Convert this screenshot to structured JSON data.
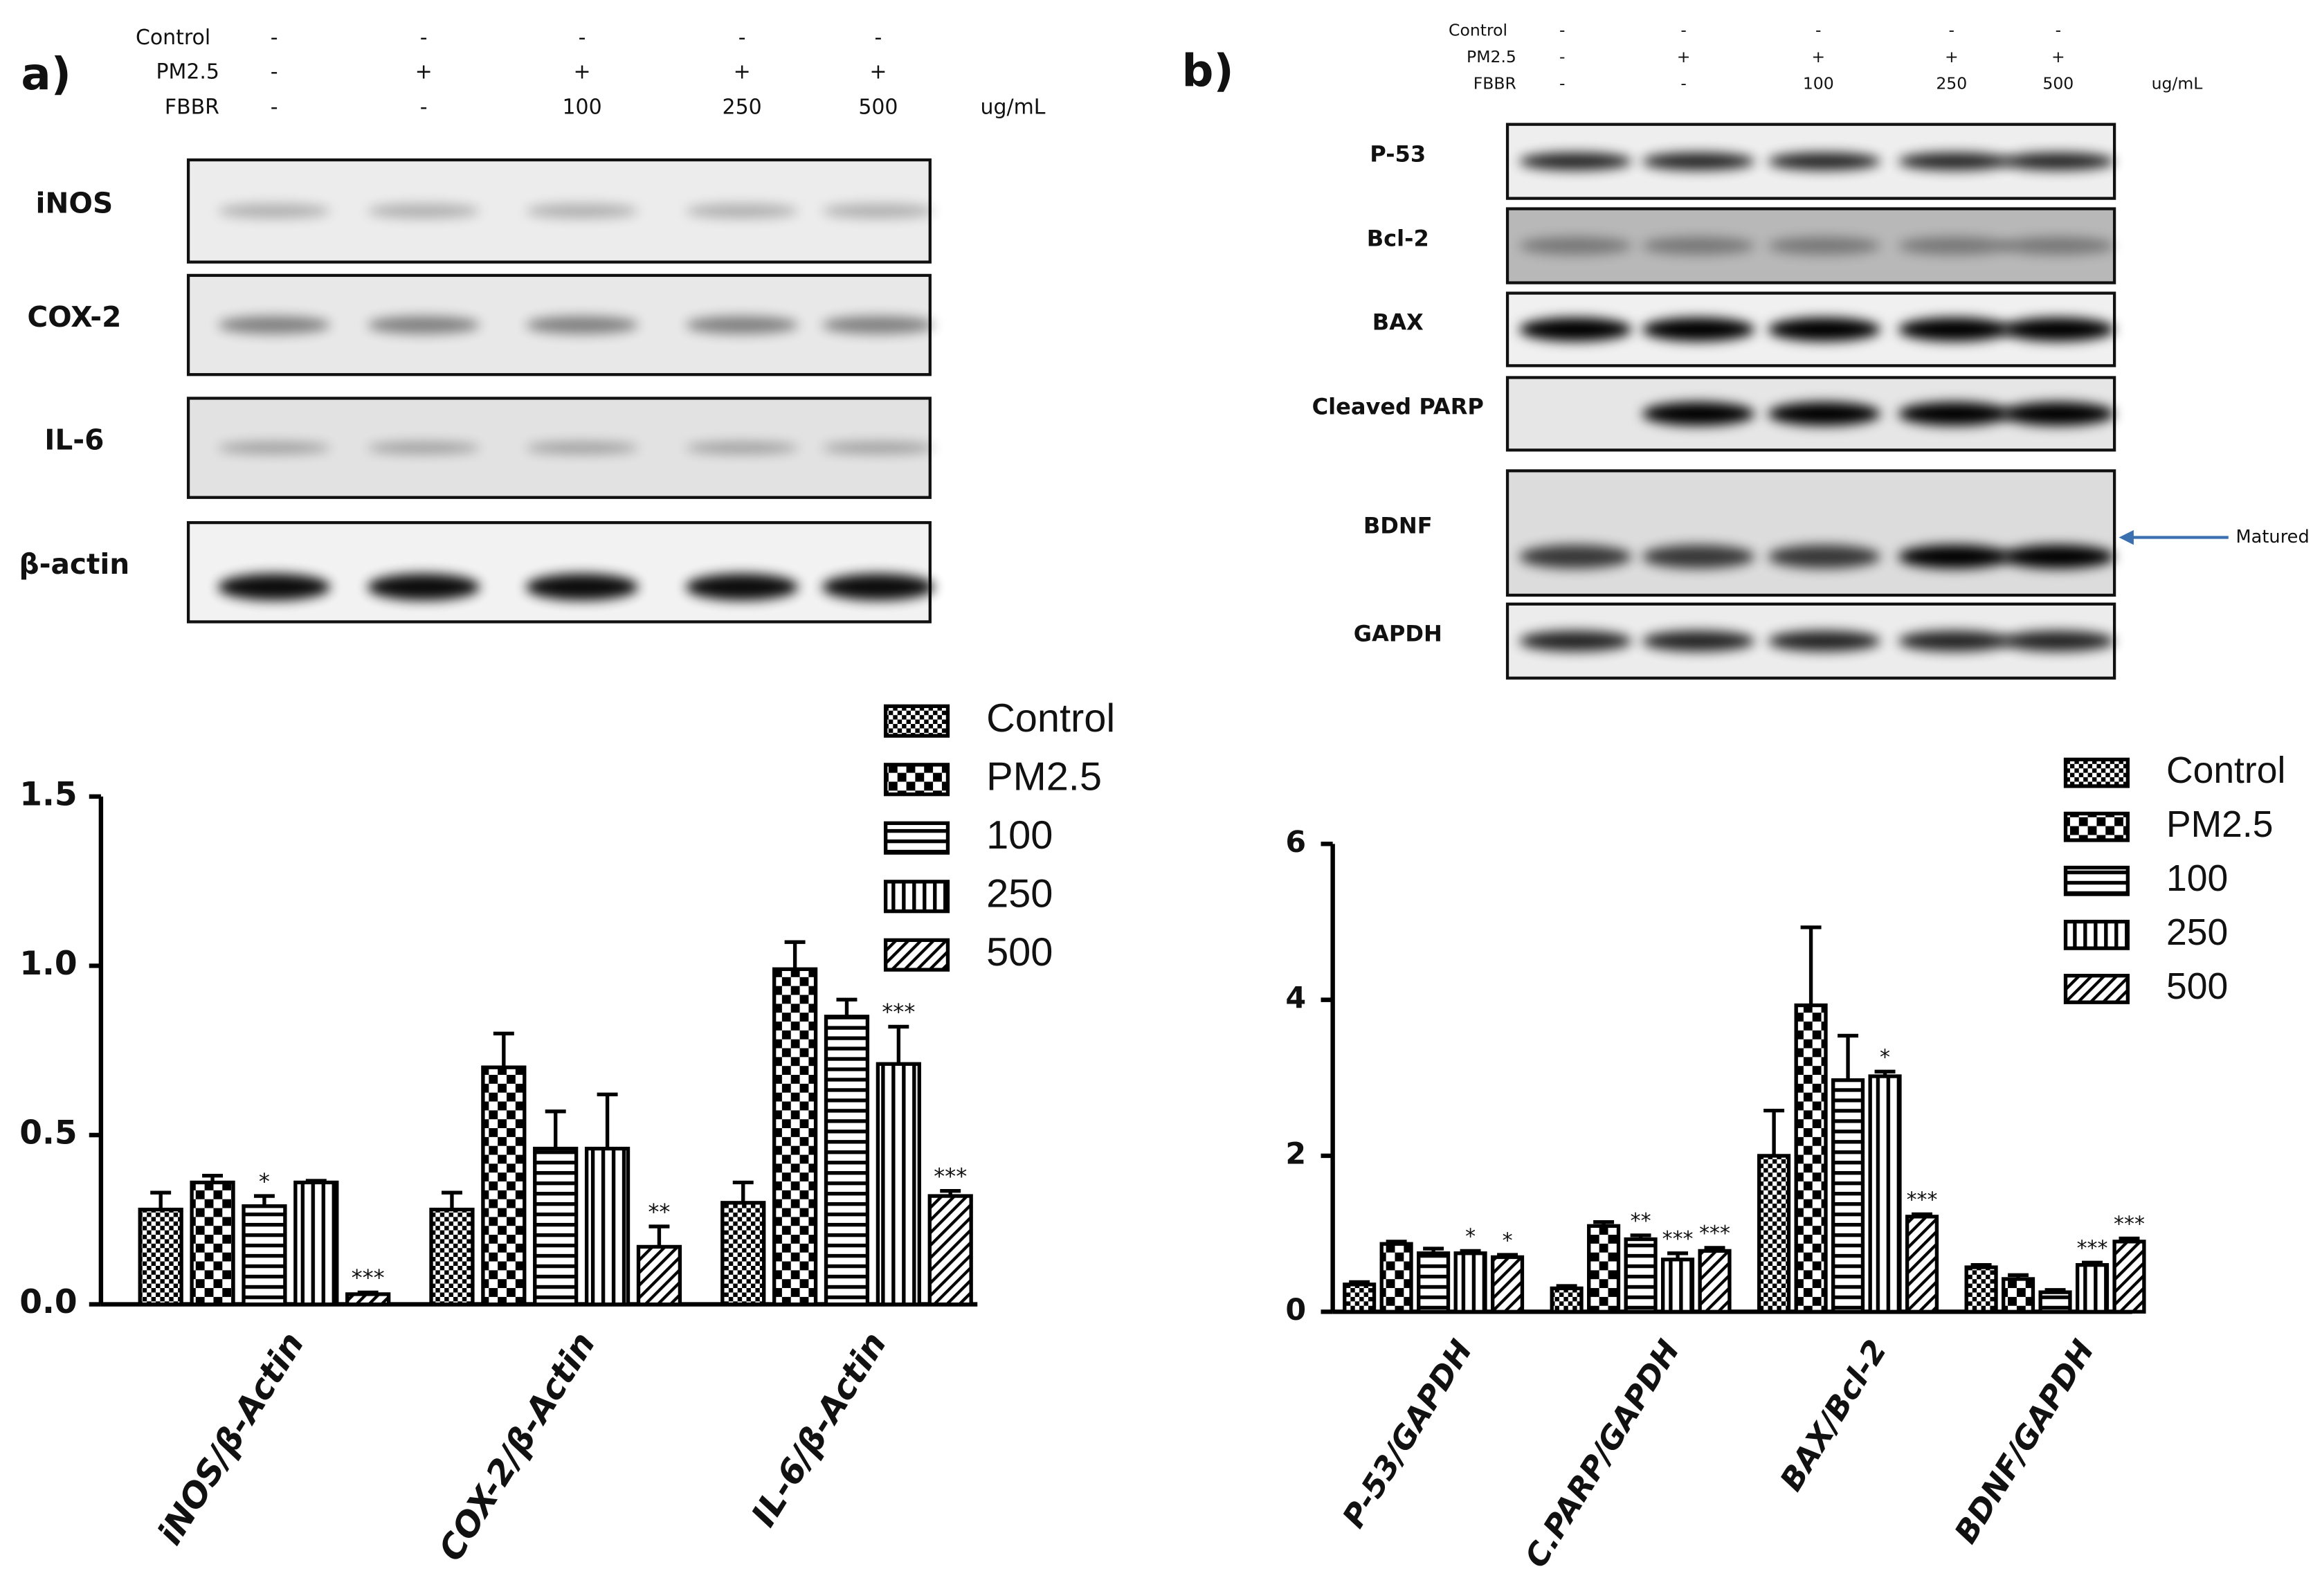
{
  "figure": {
    "panels": [
      {
        "label": "a)",
        "treatments": [
          {
            "name": "Control",
            "lanes": [
              "-",
              "-",
              "-",
              "-",
              "-"
            ]
          },
          {
            "name": "PM2.5",
            "lanes": [
              "-",
              "+",
              "+",
              "+",
              "+"
            ]
          },
          {
            "name": "FBBR",
            "lanes": [
              "-",
              "-",
              "100",
              "250",
              "500"
            ]
          }
        ],
        "unit": "ug/mL",
        "blots": [
          "iNOS",
          "COX-2",
          "IL-6",
          "β-actin"
        ]
      },
      {
        "label": "b)",
        "treatments": [
          {
            "name": "Control",
            "lanes": [
              "-",
              "-",
              "-",
              "-",
              "-"
            ]
          },
          {
            "name": "PM2.5",
            "lanes": [
              "-",
              "+",
              "+",
              "+",
              "+"
            ]
          },
          {
            "name": "FBBR",
            "lanes": [
              "-",
              "-",
              "100",
              "250",
              "500"
            ]
          }
        ],
        "unit": "ug/mL",
        "blots": [
          "P-53",
          "Bcl-2",
          "BAX",
          "Cleaved PARP",
          "BDNF",
          "GAPDH"
        ],
        "annotation": "Matured"
      }
    ]
  },
  "chart_data": [
    {
      "type": "bar",
      "categories": [
        "iNOS/β-Actin",
        "COX-2/β-Actin",
        "IL-6/β-Actin"
      ],
      "ylim": [
        0,
        1.5
      ],
      "yticks": [
        {
          "value": 0,
          "label": "0.0"
        },
        0.5,
        {
          "value": 1,
          "label": "1.0"
        },
        1.5
      ],
      "legend": "top-right",
      "series": [
        {
          "name": "Control",
          "color": "#000000",
          "pattern": "checker-small",
          "values": [
            0.28,
            0.28,
            0.3
          ],
          "errors": [
            0.05,
            0.05,
            0.06
          ],
          "significance": [
            null,
            null,
            null
          ]
        },
        {
          "name": "PM2.5",
          "color": "#000000",
          "pattern": "checker-large",
          "values": [
            0.36,
            0.7,
            0.99
          ],
          "errors": [
            0.02,
            0.1,
            0.08
          ],
          "significance": [
            null,
            null,
            null
          ]
        },
        {
          "name": "100",
          "color": "#000000",
          "pattern": "horizontal",
          "values": [
            0.29,
            0.46,
            0.85
          ],
          "errors": [
            0.03,
            0.11,
            0.05
          ],
          "significance": [
            "*",
            null,
            null
          ]
        },
        {
          "name": "250",
          "color": "#000000",
          "pattern": "vertical",
          "values": [
            0.36,
            0.46,
            0.71
          ],
          "errors": [
            0.005,
            0.16,
            0.11
          ],
          "significance": [
            null,
            null,
            "***"
          ]
        },
        {
          "name": "500",
          "color": "#000000",
          "pattern": "diagonal",
          "values": [
            0.03,
            0.17,
            0.32
          ],
          "errors": [
            0.005,
            0.06,
            0.015
          ],
          "significance": [
            "***",
            "**",
            "***"
          ]
        }
      ]
    },
    {
      "type": "bar",
      "categories": [
        "P-53/GAPDH",
        "C.PARP/GAPDH",
        "BAX/Bcl-2",
        "BDNF/GAPDH"
      ],
      "ylim": [
        0,
        6
      ],
      "yticks": [
        0,
        2,
        4,
        6
      ],
      "legend": "top-right",
      "series": [
        {
          "name": "Control",
          "color": "#000000",
          "pattern": "checker-small",
          "values": [
            0.35,
            0.3,
            2.0,
            0.57
          ],
          "errors": [
            0.03,
            0.03,
            0.58,
            0.03
          ],
          "significance": [
            null,
            null,
            null,
            null
          ]
        },
        {
          "name": "PM2.5",
          "color": "#000000",
          "pattern": "checker-large",
          "values": [
            0.87,
            1.1,
            3.93,
            0.42
          ],
          "errors": [
            0.03,
            0.05,
            1.0,
            0.05
          ],
          "significance": [
            null,
            null,
            null,
            null
          ]
        },
        {
          "name": "100",
          "color": "#000000",
          "pattern": "horizontal",
          "values": [
            0.75,
            0.93,
            2.97,
            0.25
          ],
          "errors": [
            0.06,
            0.05,
            0.57,
            0.03
          ],
          "significance": [
            null,
            "**",
            null,
            null
          ]
        },
        {
          "name": "250",
          "color": "#000000",
          "pattern": "vertical",
          "values": [
            0.75,
            0.67,
            3.02,
            0.6
          ],
          "errors": [
            0.03,
            0.08,
            0.06,
            0.03
          ],
          "significance": [
            "*",
            "***",
            "*",
            "***"
          ]
        },
        {
          "name": "500",
          "color": "#000000",
          "pattern": "diagonal",
          "values": [
            0.7,
            0.78,
            1.22,
            0.9
          ],
          "errors": [
            0.03,
            0.04,
            0.03,
            0.04
          ],
          "significance": [
            "*",
            "***",
            "***",
            "***"
          ]
        }
      ]
    }
  ]
}
